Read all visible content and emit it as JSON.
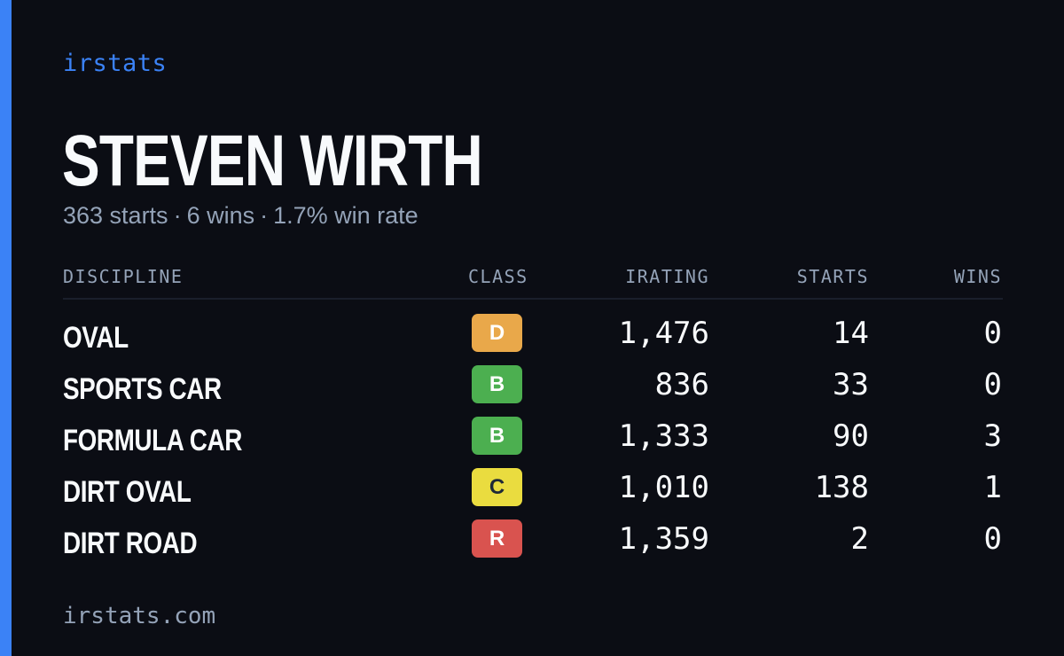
{
  "brand": "irstats",
  "driver": {
    "name": "STEVEN WIRTH",
    "summary": {
      "starts": "363 starts",
      "wins": "6 wins",
      "win_rate": "1.7% win rate",
      "separator": "·"
    }
  },
  "table": {
    "headers": {
      "discipline": "DISCIPLINE",
      "class": "CLASS",
      "irating": "IRATING",
      "starts": "STARTS",
      "wins": "WINS"
    },
    "rows": [
      {
        "discipline": "OVAL",
        "class": "D",
        "class_color": "#e9a84a",
        "class_text_color": "#ffffff",
        "irating": "1,476",
        "starts": "14",
        "wins": "0"
      },
      {
        "discipline": "SPORTS CAR",
        "class": "B",
        "class_color": "#4caf50",
        "class_text_color": "#ffffff",
        "irating": "836",
        "starts": "33",
        "wins": "0"
      },
      {
        "discipline": "FORMULA CAR",
        "class": "B",
        "class_color": "#4caf50",
        "class_text_color": "#ffffff",
        "irating": "1,333",
        "starts": "90",
        "wins": "3"
      },
      {
        "discipline": "DIRT OVAL",
        "class": "C",
        "class_color": "#eadc3f",
        "class_text_color": "#1f2937",
        "irating": "1,010",
        "starts": "138",
        "wins": "1"
      },
      {
        "discipline": "DIRT ROAD",
        "class": "R",
        "class_color": "#d9534f",
        "class_text_color": "#ffffff",
        "irating": "1,359",
        "starts": "2",
        "wins": "0"
      }
    ]
  },
  "footer": "irstats.com",
  "colors": {
    "background": "#0b0d14",
    "accent": "#3b82f6",
    "muted": "#94a3b8",
    "text": "#f8fafc"
  }
}
